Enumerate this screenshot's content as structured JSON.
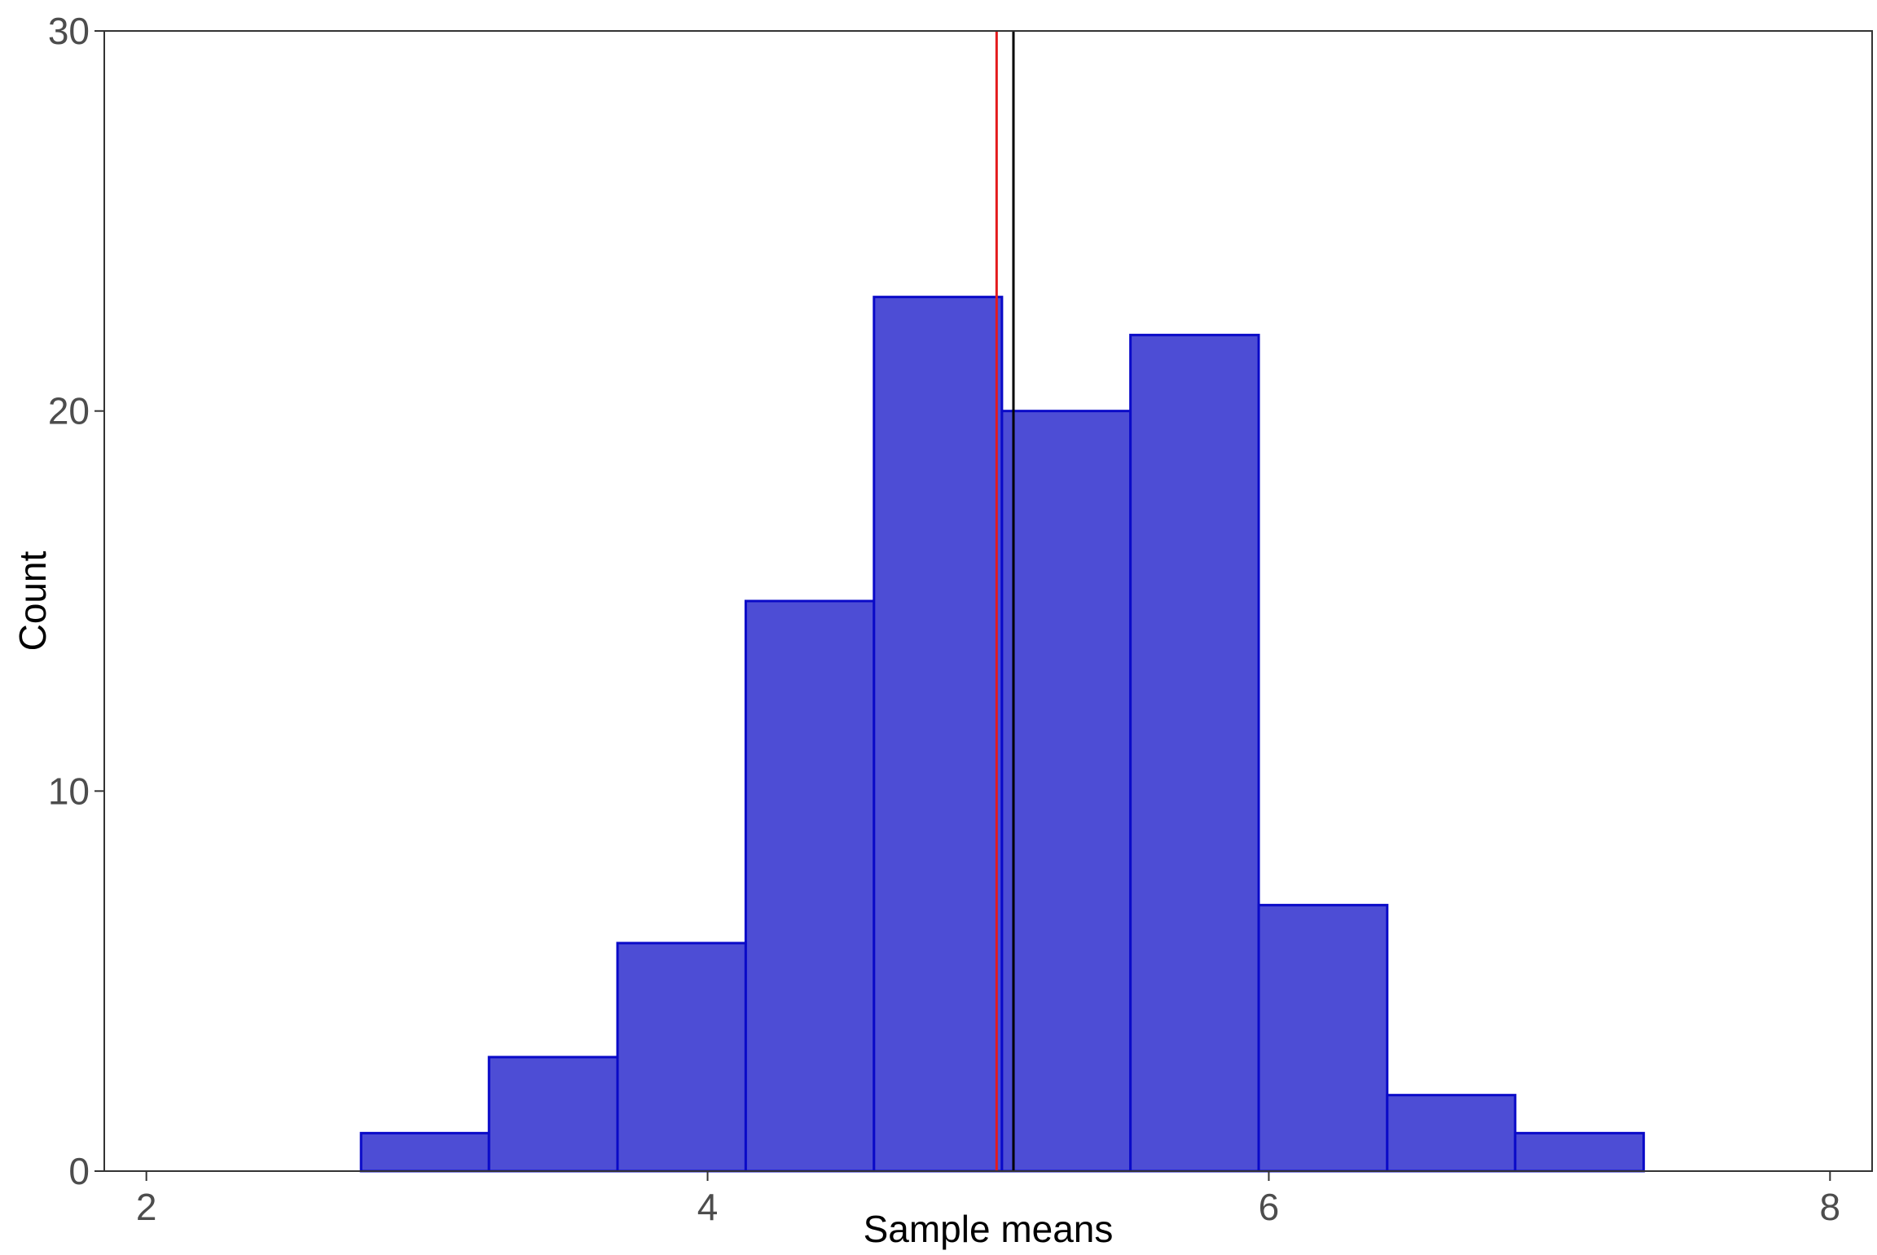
{
  "chart_data": {
    "type": "bar",
    "subtype": "histogram",
    "xlabel": "Sample means",
    "ylabel": "Count",
    "xlim": [
      1.85,
      8.15
    ],
    "ylim": [
      0,
      30
    ],
    "x_ticks": [
      2,
      4,
      6,
      8
    ],
    "y_ticks": [
      0,
      10,
      20,
      30
    ],
    "bins": [
      {
        "x0": 2.765,
        "x1": 3.221,
        "count": 1
      },
      {
        "x0": 3.221,
        "x1": 3.679,
        "count": 3
      },
      {
        "x0": 3.679,
        "x1": 4.136,
        "count": 6
      },
      {
        "x0": 4.136,
        "x1": 4.593,
        "count": 15
      },
      {
        "x0": 4.593,
        "x1": 5.049,
        "count": 23
      },
      {
        "x0": 5.049,
        "x1": 5.507,
        "count": 20
      },
      {
        "x0": 5.507,
        "x1": 5.964,
        "count": 22
      },
      {
        "x0": 5.964,
        "x1": 6.422,
        "count": 7
      },
      {
        "x0": 6.422,
        "x1": 6.878,
        "count": 2
      },
      {
        "x0": 6.878,
        "x1": 7.336,
        "count": 1
      }
    ],
    "vlines": [
      {
        "x": 5.03,
        "color": "#e41a1c"
      },
      {
        "x": 5.09,
        "color": "#000000"
      }
    ],
    "bar_fill": "#4d4dd5",
    "bar_stroke": "#0a0ac8",
    "grid": false,
    "legend": "none"
  }
}
